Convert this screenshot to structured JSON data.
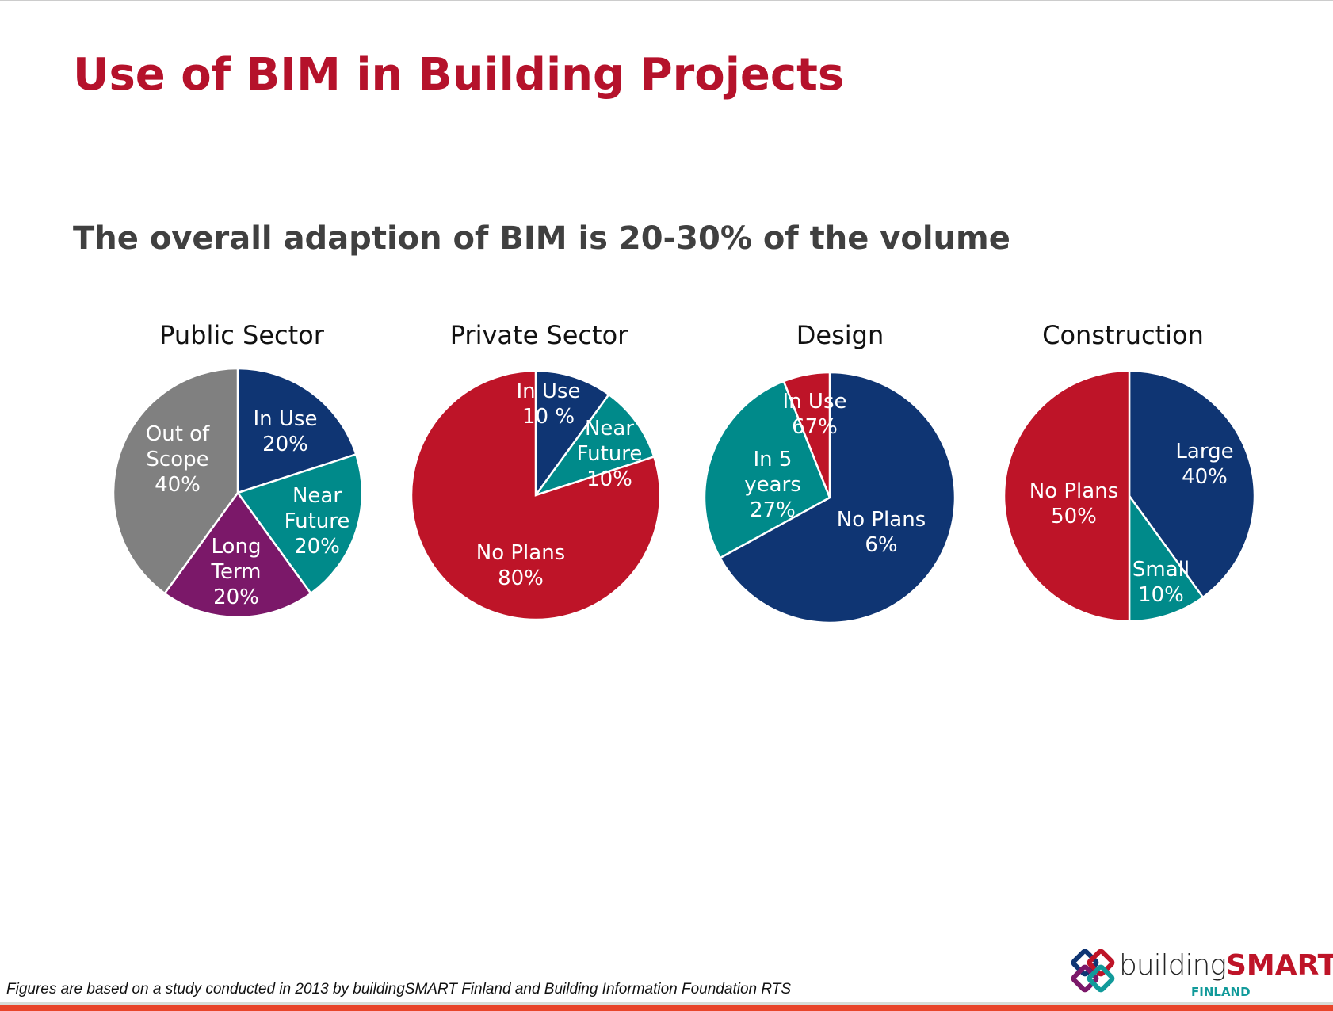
{
  "title": "Use of BIM in Building Projects",
  "subtitle": "The overall adaption of BIM is 20-30% of the volume",
  "footnote": "Figures are based on a study conducted in 2013 by buildingSMART Finland and Building Information Foundation RTS",
  "logo": {
    "text_a": "building",
    "text_b": "SMART",
    "text_c": "FINLAND"
  },
  "colors": {
    "navy": "#0f3573",
    "teal": "#008a8a",
    "purple": "#7b1869",
    "grey": "#808080",
    "red": "#be1428"
  },
  "chart_data": [
    {
      "type": "pie",
      "title": "Public Sector",
      "slices": [
        {
          "label": "In Use",
          "text": [
            "In Use",
            "20%"
          ],
          "value": 20,
          "color": "#0f3573"
        },
        {
          "label": "Near Future",
          "text": [
            "Near",
            "Future",
            "20%"
          ],
          "value": 20,
          "color": "#008a8a"
        },
        {
          "label": "Long Term",
          "text": [
            "Long",
            "Term",
            "20%"
          ],
          "value": 20,
          "color": "#7b1869"
        },
        {
          "label": "Out of Scope",
          "text": [
            "Out of",
            "Scope",
            "40%"
          ],
          "value": 40,
          "color": "#808080"
        }
      ]
    },
    {
      "type": "pie",
      "title": "Private Sector",
      "slices": [
        {
          "label": "In Use",
          "text": [
            "In Use",
            "10 %"
          ],
          "value": 10,
          "color": "#0f3573"
        },
        {
          "label": "Near Future",
          "text": [
            "Near",
            "Future",
            "10%"
          ],
          "value": 10,
          "color": "#008a8a"
        },
        {
          "label": "No Plans",
          "text": [
            "No Plans",
            "80%"
          ],
          "value": 80,
          "color": "#be1428"
        }
      ]
    },
    {
      "type": "pie",
      "title": "Design",
      "slices": [
        {
          "label": "In Use",
          "text": [
            "In Use",
            "67%"
          ],
          "value": 67,
          "color": "#0f3573"
        },
        {
          "label": "In 5 years",
          "text": [
            "In 5",
            "years",
            "27%"
          ],
          "value": 27,
          "color": "#008a8a"
        },
        {
          "label": "No Plans",
          "text": [
            "No Plans",
            "6%"
          ],
          "value": 6,
          "color": "#be1428"
        }
      ]
    },
    {
      "type": "pie",
      "title": "Construction",
      "slices": [
        {
          "label": "Large",
          "text": [
            "Large",
            "40%"
          ],
          "value": 40,
          "color": "#0f3573"
        },
        {
          "label": "Small",
          "text": [
            "Small",
            "10%"
          ],
          "value": 10,
          "color": "#008a8a"
        },
        {
          "label": "No Plans",
          "text": [
            "No Plans",
            "50%"
          ],
          "value": 50,
          "color": "#be1428"
        }
      ]
    }
  ]
}
